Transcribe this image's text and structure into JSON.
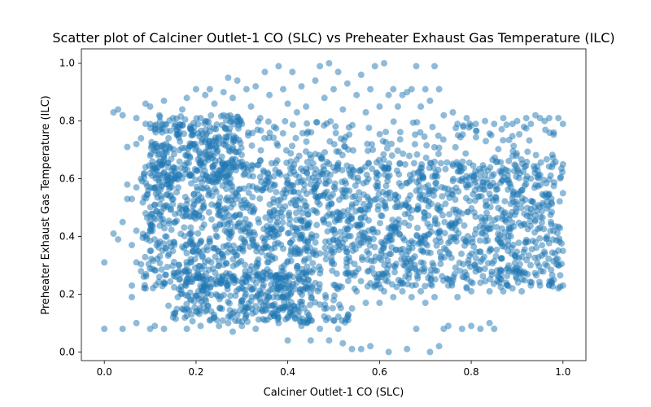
{
  "chart_data": {
    "type": "scatter",
    "title": "Scatter plot of Calciner Outlet-1 CO (SLC) vs Preheater Exhaust Gas Temperature (ILC)",
    "xlabel": "Calciner Outlet-1 CO (SLC)",
    "ylabel": "Preheater Exhaust Gas Temperature (ILC)",
    "xlim": [
      -0.05,
      1.05
    ],
    "ylim": [
      -0.03,
      1.05
    ],
    "xticks": [
      "0.0",
      "0.2",
      "0.4",
      "0.6",
      "0.8",
      "1.0"
    ],
    "yticks": [
      "0.0",
      "0.2",
      "0.4",
      "0.6",
      "0.8",
      "1.0"
    ],
    "grid": false,
    "legend": "none",
    "marker_color": "#1f77b4",
    "marker_alpha": 0.5,
    "points": [
      [
        0.0,
        0.31
      ],
      [
        0.0,
        0.08
      ],
      [
        0.02,
        0.83
      ],
      [
        0.02,
        0.41
      ],
      [
        0.03,
        0.39
      ],
      [
        0.03,
        0.84
      ],
      [
        0.04,
        0.82
      ],
      [
        0.04,
        0.45
      ],
      [
        0.04,
        0.08
      ],
      [
        0.05,
        0.53
      ],
      [
        0.05,
        0.71
      ],
      [
        0.05,
        0.58
      ],
      [
        0.06,
        0.37
      ],
      [
        0.06,
        0.53
      ],
      [
        0.06,
        0.23
      ],
      [
        0.06,
        0.19
      ],
      [
        0.07,
        0.81
      ],
      [
        0.07,
        0.72
      ],
      [
        0.07,
        0.57
      ],
      [
        0.07,
        0.42
      ],
      [
        0.07,
        0.31
      ],
      [
        0.07,
        0.1
      ],
      [
        0.08,
        0.74
      ],
      [
        0.08,
        0.6
      ],
      [
        0.08,
        0.28
      ],
      [
        0.09,
        0.86
      ],
      [
        0.09,
        0.79
      ],
      [
        0.09,
        0.64
      ],
      [
        0.09,
        0.48
      ],
      [
        0.09,
        0.22
      ],
      [
        0.1,
        0.85
      ],
      [
        0.1,
        0.68
      ],
      [
        0.1,
        0.35
      ],
      [
        0.1,
        0.08
      ],
      [
        0.11,
        0.77
      ],
      [
        0.11,
        0.51
      ],
      [
        0.11,
        0.09
      ],
      [
        0.12,
        0.82
      ],
      [
        0.12,
        0.66
      ],
      [
        0.12,
        0.26
      ],
      [
        0.13,
        0.08
      ],
      [
        0.13,
        0.87
      ],
      [
        0.14,
        0.74
      ],
      [
        0.14,
        0.16
      ],
      [
        0.15,
        0.81
      ],
      [
        0.15,
        0.12
      ],
      [
        0.16,
        0.78
      ],
      [
        0.17,
        0.15
      ],
      [
        0.17,
        0.84
      ],
      [
        0.18,
        0.08
      ],
      [
        0.18,
        0.88
      ],
      [
        0.19,
        0.75
      ],
      [
        0.19,
        0.13
      ],
      [
        0.2,
        0.91
      ],
      [
        0.21,
        0.81
      ],
      [
        0.21,
        0.09
      ],
      [
        0.22,
        0.89
      ],
      [
        0.22,
        0.14
      ],
      [
        0.23,
        0.91
      ],
      [
        0.23,
        0.78
      ],
      [
        0.24,
        0.12
      ],
      [
        0.24,
        0.86
      ],
      [
        0.25,
        0.09
      ],
      [
        0.26,
        0.9
      ],
      [
        0.26,
        0.82
      ],
      [
        0.27,
        0.95
      ],
      [
        0.27,
        0.1
      ],
      [
        0.28,
        0.88
      ],
      [
        0.28,
        0.07
      ],
      [
        0.29,
        0.94
      ],
      [
        0.3,
        0.79
      ],
      [
        0.3,
        0.09
      ],
      [
        0.31,
        0.91
      ],
      [
        0.31,
        0.13
      ],
      [
        0.32,
        0.85
      ],
      [
        0.33,
        0.92
      ],
      [
        0.33,
        0.08
      ],
      [
        0.34,
        0.81
      ],
      [
        0.35,
        0.97
      ],
      [
        0.35,
        0.11
      ],
      [
        0.36,
        0.89
      ],
      [
        0.36,
        0.16
      ],
      [
        0.37,
        0.78
      ],
      [
        0.38,
        0.99
      ],
      [
        0.38,
        0.1
      ],
      [
        0.39,
        0.91
      ],
      [
        0.4,
        0.04
      ],
      [
        0.4,
        0.86
      ],
      [
        0.41,
        0.14
      ],
      [
        0.41,
        0.97
      ],
      [
        0.42,
        0.83
      ],
      [
        0.43,
        0.09
      ],
      [
        0.43,
        0.92
      ],
      [
        0.44,
        0.85
      ],
      [
        0.45,
        0.04
      ],
      [
        0.45,
        0.11
      ],
      [
        0.46,
        0.94
      ],
      [
        0.47,
        0.99
      ],
      [
        0.47,
        0.08
      ],
      [
        0.48,
        0.88
      ],
      [
        0.48,
        0.15
      ],
      [
        0.49,
        1.0
      ],
      [
        0.49,
        0.04
      ],
      [
        0.5,
        0.91
      ],
      [
        0.5,
        0.11
      ],
      [
        0.51,
        0.97
      ],
      [
        0.51,
        0.08
      ],
      [
        0.52,
        0.84
      ],
      [
        0.52,
        0.03
      ],
      [
        0.53,
        0.93
      ],
      [
        0.53,
        0.12
      ],
      [
        0.54,
        0.01
      ],
      [
        0.55,
        0.89
      ],
      [
        0.55,
        0.21
      ],
      [
        0.56,
        0.96
      ],
      [
        0.56,
        0.01
      ],
      [
        0.57,
        0.83
      ],
      [
        0.57,
        0.17
      ],
      [
        0.58,
        0.91
      ],
      [
        0.58,
        0.02
      ],
      [
        0.59,
        0.99
      ],
      [
        0.59,
        0.23
      ],
      [
        0.6,
        0.85
      ],
      [
        0.6,
        0.17
      ],
      [
        0.61,
        1.0
      ],
      [
        0.61,
        0.21
      ],
      [
        0.62,
        0.89
      ],
      [
        0.62,
        0.0
      ],
      [
        0.63,
        0.91
      ],
      [
        0.63,
        0.19
      ],
      [
        0.64,
        0.85
      ],
      [
        0.65,
        0.21
      ],
      [
        0.65,
        0.89
      ],
      [
        0.66,
        0.9
      ],
      [
        0.66,
        0.01
      ],
      [
        0.67,
        0.91
      ],
      [
        0.67,
        0.19
      ],
      [
        0.68,
        0.99
      ],
      [
        0.68,
        0.08
      ],
      [
        0.69,
        0.85
      ],
      [
        0.69,
        0.21
      ],
      [
        0.7,
        0.91
      ],
      [
        0.7,
        0.17
      ],
      [
        0.71,
        0.87
      ],
      [
        0.71,
        0.0
      ],
      [
        0.72,
        0.99
      ],
      [
        0.72,
        0.19
      ],
      [
        0.73,
        0.91
      ],
      [
        0.73,
        0.02
      ],
      [
        0.74,
        0.08
      ],
      [
        0.74,
        0.82
      ],
      [
        0.75,
        0.09
      ],
      [
        0.75,
        0.23
      ],
      [
        0.76,
        0.83
      ],
      [
        0.77,
        0.19
      ],
      [
        0.77,
        0.79
      ],
      [
        0.78,
        0.08
      ],
      [
        0.79,
        0.81
      ],
      [
        0.79,
        0.22
      ],
      [
        0.8,
        0.09
      ],
      [
        0.8,
        0.21
      ],
      [
        0.81,
        0.79
      ],
      [
        0.82,
        0.08
      ],
      [
        0.82,
        0.24
      ],
      [
        0.83,
        0.8
      ],
      [
        0.84,
        0.21
      ],
      [
        0.84,
        0.1
      ],
      [
        0.85,
        0.08
      ],
      [
        0.85,
        0.79
      ],
      [
        0.86,
        0.26
      ],
      [
        0.87,
        0.81
      ],
      [
        0.87,
        0.21
      ],
      [
        0.88,
        0.35
      ],
      [
        0.89,
        0.79
      ],
      [
        0.89,
        0.22
      ],
      [
        0.9,
        0.8
      ],
      [
        0.9,
        0.29
      ],
      [
        0.91,
        0.21
      ],
      [
        0.91,
        0.56
      ],
      [
        0.92,
        0.81
      ],
      [
        0.93,
        0.23
      ],
      [
        0.93,
        0.79
      ],
      [
        0.94,
        0.82
      ],
      [
        0.94,
        0.38
      ],
      [
        0.95,
        0.23
      ],
      [
        0.95,
        0.81
      ],
      [
        0.96,
        0.8
      ],
      [
        0.96,
        0.34
      ],
      [
        0.97,
        0.23
      ],
      [
        0.97,
        0.81
      ],
      [
        0.98,
        0.25
      ],
      [
        0.98,
        0.76
      ],
      [
        0.99,
        0.22
      ],
      [
        0.99,
        0.81
      ],
      [
        0.99,
        0.3
      ],
      [
        1.0,
        0.79
      ],
      [
        1.0,
        0.23
      ],
      [
        1.0,
        0.65
      ],
      [
        1.0,
        0.55
      ],
      [
        1.0,
        0.35
      ]
    ]
  }
}
